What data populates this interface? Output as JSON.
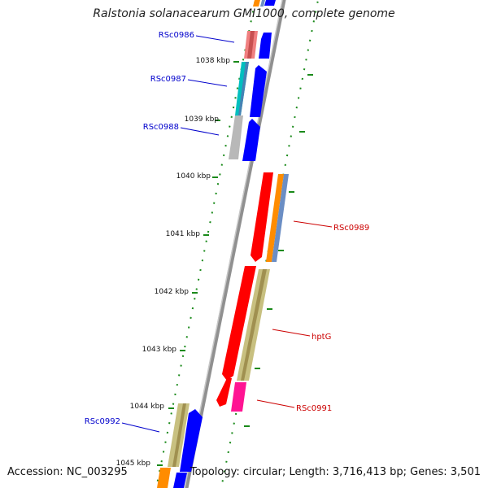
{
  "title": "Ralstonia solanacearum GMI1000, complete genome",
  "accession": "Accession: NC_003295",
  "topology": "Topology: circular; Length: 3,716,413 bp; Genes: 3,501",
  "kbp_labels": [
    "1038 kbp",
    "1039 kbp",
    "1040 kbp",
    "1041 kbp",
    "1042 kbp",
    "1043 kbp",
    "1044 kbp",
    "1045 kbp"
  ],
  "genes": {
    "RSc0986": "RSc0986",
    "RSc0987": "RSc0987",
    "RSc0988": "RSc0988",
    "RSc0989": "RSc0989",
    "hptG": "hptG",
    "RSc0991": "RSc0991",
    "RSc0992": "RSc0992"
  },
  "colors": {
    "forward_label": "#0000cc",
    "reverse_label": "#cc0000",
    "cds_forward": "#0000ff",
    "cds_reverse": "#ff0000",
    "backbone": "#808080",
    "tick": "#1a8a1a"
  }
}
